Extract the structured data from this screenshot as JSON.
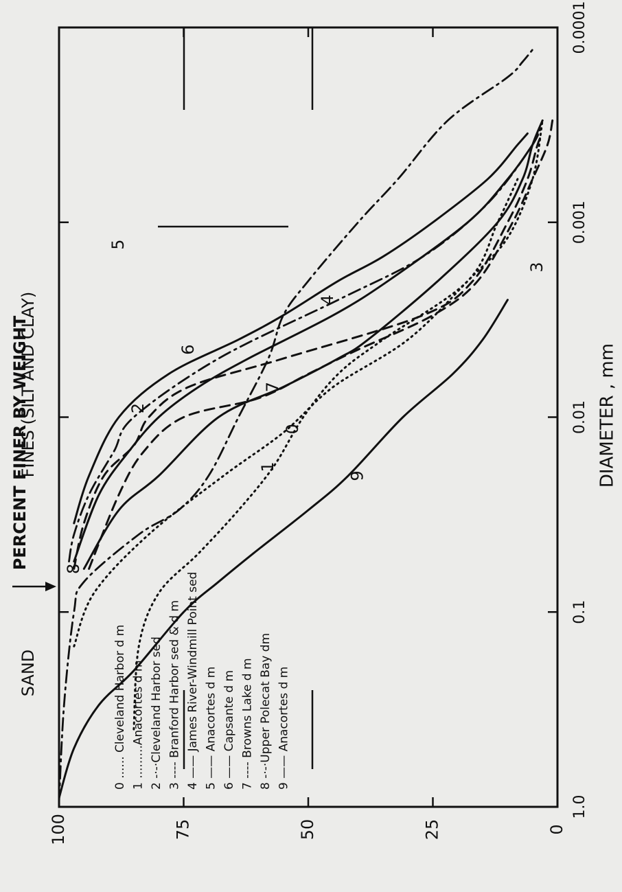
{
  "chart_data": {
    "type": "line",
    "xlabel": "DIAMETER , mm",
    "ylabel": "PERCENT FINER BY WEIGHT",
    "x_scale": "log",
    "x_reversed": true,
    "xlim": [
      1.0,
      0.0001
    ],
    "ylim": [
      0,
      100
    ],
    "x_ticks": [
      {
        "value": 1.0,
        "label": "1.0"
      },
      {
        "value": 0.1,
        "label": "0.1"
      },
      {
        "value": 0.01,
        "label": "0.01"
      },
      {
        "value": 0.001,
        "label": "0.001"
      },
      {
        "value": 0.0001,
        "label": "0.0001"
      }
    ],
    "y_ticks": [
      {
        "value": 0,
        "label": "0"
      },
      {
        "value": 25,
        "label": "25"
      },
      {
        "value": 50,
        "label": "50"
      },
      {
        "value": 75,
        "label": "75"
      },
      {
        "value": 100,
        "label": "100"
      }
    ],
    "region_labels": {
      "sand": "SAND",
      "fines": "FINES (SILT AND CLAY)"
    },
    "boundary_diameter": 0.074,
    "grid": false,
    "legend_position": "bottom-left",
    "series": [
      {
        "id": "0",
        "legend": "0 ...... Cleveland Harbor d m",
        "style": "dotted",
        "label_pos": [
          0.0115,
          53
        ],
        "points": [
          [
            0.15,
            97
          ],
          [
            0.08,
            93
          ],
          [
            0.04,
            82
          ],
          [
            0.02,
            67
          ],
          [
            0.012,
            55
          ],
          [
            0.007,
            45
          ],
          [
            0.004,
            30
          ],
          [
            0.002,
            18
          ],
          [
            0.0012,
            10
          ],
          [
            0.0006,
            5
          ],
          [
            0.0003,
            3
          ]
        ]
      },
      {
        "id": "1",
        "legend": "1 .........Anacortes d m",
        "style": "dotted",
        "label_pos": [
          0.018,
          58
        ],
        "points": [
          [
            0.4,
            85
          ],
          [
            0.15,
            84
          ],
          [
            0.08,
            80
          ],
          [
            0.05,
            72
          ],
          [
            0.03,
            64
          ],
          [
            0.018,
            57
          ],
          [
            0.01,
            51
          ],
          [
            0.006,
            44
          ],
          [
            0.004,
            35
          ],
          [
            0.002,
            18
          ],
          [
            0.001,
            12
          ],
          [
            0.0006,
            8
          ]
        ]
      },
      {
        "id": "2",
        "legend": "2 -·-·Cleveland Harbor sed",
        "style": "dashdot",
        "label_pos": [
          0.009,
          84
        ],
        "points": [
          [
            0.055,
            98
          ],
          [
            0.04,
            97
          ],
          [
            0.025,
            94
          ],
          [
            0.015,
            89
          ],
          [
            0.01,
            85
          ],
          [
            0.005,
            68
          ],
          [
            0.0025,
            44
          ],
          [
            0.0015,
            27
          ],
          [
            0.0008,
            14
          ],
          [
            0.0004,
            5
          ],
          [
            0.0003,
            3
          ]
        ]
      },
      {
        "id": "3",
        "legend": "3 ---- Branford Harbor sed & d m",
        "style": "dashed",
        "label_pos": [
          0.0017,
          4
        ],
        "points": [
          [
            0.06,
            94
          ],
          [
            0.025,
            88
          ],
          [
            0.015,
            83
          ],
          [
            0.01,
            75
          ],
          [
            0.008,
            60
          ],
          [
            0.006,
            50
          ],
          [
            0.0045,
            40
          ],
          [
            0.003,
            25
          ],
          [
            0.002,
            16
          ],
          [
            0.001,
            9
          ],
          [
            0.0006,
            5
          ],
          [
            0.0004,
            2
          ],
          [
            0.0003,
            1
          ]
        ]
      },
      {
        "id": "4",
        "legend": "4 —— James River-Windmill Point sed",
        "style": "solid",
        "label_pos": [
          0.0025,
          46
        ],
        "points": [
          [
            0.06,
            95
          ],
          [
            0.03,
            88
          ],
          [
            0.02,
            80
          ],
          [
            0.01,
            68
          ],
          [
            0.007,
            55
          ],
          [
            0.005,
            44
          ],
          [
            0.004,
            38
          ],
          [
            0.002,
            24
          ],
          [
            0.001,
            12
          ],
          [
            0.0006,
            7
          ],
          [
            0.0004,
            5
          ],
          [
            0.0003,
            3
          ]
        ]
      },
      {
        "id": "5",
        "legend": "5 —— Anacortes d m",
        "style": "solid",
        "label_pos": [
          0.0013,
          88
        ],
        "points": [
          [
            0.035,
            97
          ],
          [
            0.02,
            94
          ],
          [
            0.01,
            88
          ],
          [
            0.006,
            78
          ],
          [
            0.004,
            64
          ],
          [
            0.003,
            55
          ],
          [
            0.002,
            44
          ],
          [
            0.0015,
            35
          ],
          [
            0.001,
            25
          ],
          [
            0.0006,
            14
          ],
          [
            0.0004,
            8
          ],
          [
            0.00035,
            6
          ]
        ]
      },
      {
        "id": "6",
        "legend": "6 —— Capsante d m",
        "style": "solid",
        "label_pos": [
          0.0045,
          74
        ],
        "points": [
          [
            0.055,
            97
          ],
          [
            0.025,
            92
          ],
          [
            0.015,
            86
          ],
          [
            0.01,
            80
          ],
          [
            0.007,
            72
          ],
          [
            0.005,
            62
          ],
          [
            0.003,
            45
          ],
          [
            0.002,
            34
          ],
          [
            0.001,
            18
          ],
          [
            0.0006,
            10
          ],
          [
            0.0004,
            5
          ],
          [
            0.00035,
            4
          ]
        ]
      },
      {
        "id": "7",
        "legend": "7 ---- Browns Lake d m",
        "style": "dashed",
        "label_pos": [
          0.007,
          57
        ],
        "points": [
          [
            0.06,
            97
          ],
          [
            0.035,
            95
          ],
          [
            0.02,
            91
          ],
          [
            0.014,
            85
          ],
          [
            0.01,
            82
          ],
          [
            0.007,
            74
          ],
          [
            0.005,
            55
          ],
          [
            0.003,
            27
          ],
          [
            0.002,
            17
          ],
          [
            0.001,
            10
          ],
          [
            0.0006,
            6
          ],
          [
            0.0004,
            4
          ],
          [
            0.00035,
            3
          ]
        ]
      },
      {
        "id": "8",
        "legend": "8 -·-·Upper Polecat Bay dm",
        "style": "dashdot",
        "label_pos": [
          0.06,
          97
        ],
        "points": [
          [
            0.95,
            100
          ],
          [
            0.3,
            99
          ],
          [
            0.1,
            97
          ],
          [
            0.07,
            95
          ],
          [
            0.04,
            84
          ],
          [
            0.03,
            76
          ],
          [
            0.02,
            70
          ],
          [
            0.01,
            64
          ],
          [
            0.005,
            58
          ],
          [
            0.003,
            55
          ],
          [
            0.002,
            50
          ],
          [
            0.001,
            40
          ],
          [
            0.0006,
            32
          ],
          [
            0.0003,
            22
          ],
          [
            0.00018,
            10
          ],
          [
            0.00015,
            7
          ],
          [
            0.00013,
            5
          ]
        ]
      },
      {
        "id": "9",
        "legend": "9 —— Anacortes d m",
        "style": "solid",
        "label_pos": [
          0.02,
          40
        ],
        "points": [
          [
            0.9,
            100
          ],
          [
            0.5,
            97
          ],
          [
            0.3,
            92
          ],
          [
            0.2,
            85
          ],
          [
            0.1,
            75
          ],
          [
            0.07,
            68
          ],
          [
            0.05,
            61
          ],
          [
            0.03,
            50
          ],
          [
            0.02,
            42
          ],
          [
            0.01,
            31
          ],
          [
            0.006,
            21
          ],
          [
            0.004,
            15
          ],
          [
            0.0025,
            10
          ]
        ]
      }
    ]
  }
}
